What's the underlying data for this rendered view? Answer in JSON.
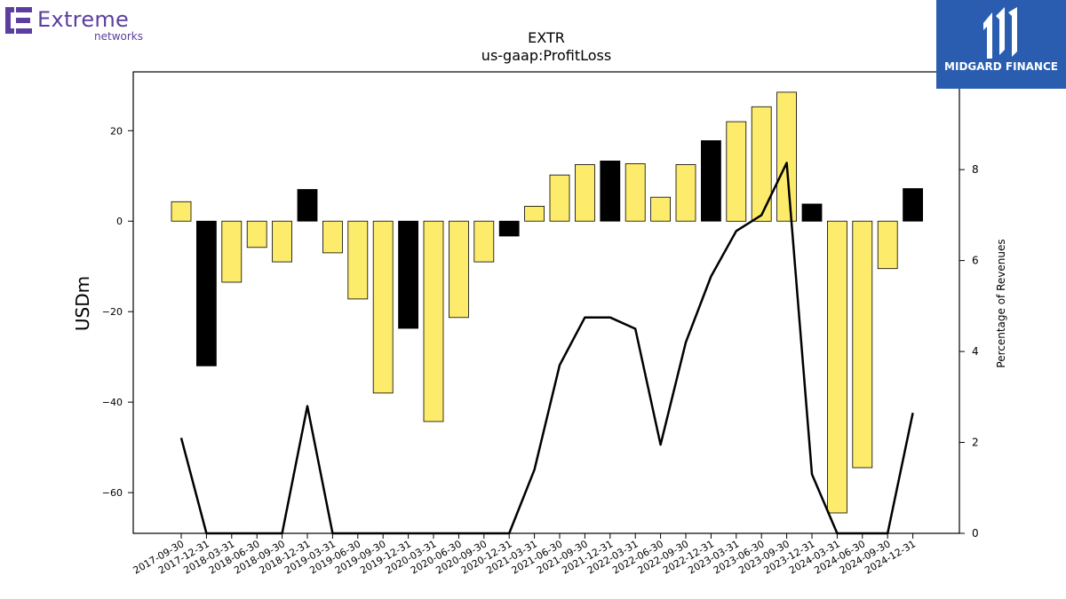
{
  "logos": {
    "left_word": "Extreme",
    "left_sub": "networks",
    "right_text": "MIDGARD FINANCE",
    "left_color": "#5b3fa0",
    "right_bg": "#2a5db0"
  },
  "chart_data": {
    "type": "bar",
    "title": "EXTR",
    "subtitle": "us-gaap:ProfitLoss",
    "ylabel": "USDm",
    "y2label": "Percentage of Revenues",
    "ylim": [
      -69,
      33
    ],
    "y2lim": [
      0,
      10.15
    ],
    "yticks": [
      -60,
      -40,
      -20,
      0,
      20
    ],
    "y2ticks": [
      0,
      2,
      4,
      6,
      8
    ],
    "grid": false,
    "legend": "none",
    "colors": {
      "quarter": "#fdeb6c",
      "fiscal_year_end": "#000000",
      "line": "#000000"
    },
    "categories": [
      "2017-09-30",
      "2017-12-31",
      "2018-03-31",
      "2018-06-30",
      "2018-09-30",
      "2018-12-31",
      "2019-03-31",
      "2019-06-30",
      "2019-09-30",
      "2019-12-31",
      "2020-03-31",
      "2020-06-30",
      "2020-09-30",
      "2020-12-31",
      "2021-03-31",
      "2021-06-30",
      "2021-09-30",
      "2021-12-31",
      "2022-03-31",
      "2022-06-30",
      "2022-09-30",
      "2022-12-31",
      "2023-03-31",
      "2023-06-30",
      "2023-09-30",
      "2023-12-31",
      "2024-03-31",
      "2024-06-30",
      "2024-09-30",
      "2024-12-31"
    ],
    "series": [
      {
        "kind": "bar",
        "values": [
          4.3,
          -32.0,
          -13.5,
          -5.8,
          -9.0,
          7.0,
          -7.0,
          -17.2,
          -38.0,
          -23.7,
          -44.3,
          -21.3,
          -9.0,
          -3.3,
          3.3,
          10.2,
          12.5,
          13.3,
          12.7,
          5.3,
          12.5,
          17.8,
          22.0,
          25.3,
          28.5,
          3.8,
          -64.5,
          -54.5,
          -10.5,
          7.2
        ],
        "highlight": [
          false,
          true,
          false,
          false,
          false,
          true,
          false,
          false,
          false,
          true,
          false,
          false,
          false,
          true,
          false,
          false,
          false,
          true,
          false,
          false,
          false,
          true,
          false,
          false,
          false,
          true,
          false,
          false,
          false,
          true
        ]
      },
      {
        "kind": "line",
        "axis": "right",
        "values": [
          2.1,
          0,
          0,
          0,
          0,
          2.8,
          0,
          0,
          0,
          0,
          0,
          0,
          0,
          0,
          1.4,
          3.7,
          4.75,
          4.75,
          4.5,
          1.95,
          4.2,
          5.65,
          6.65,
          7.0,
          8.15,
          1.3,
          0,
          0,
          0,
          2.65
        ]
      }
    ]
  }
}
